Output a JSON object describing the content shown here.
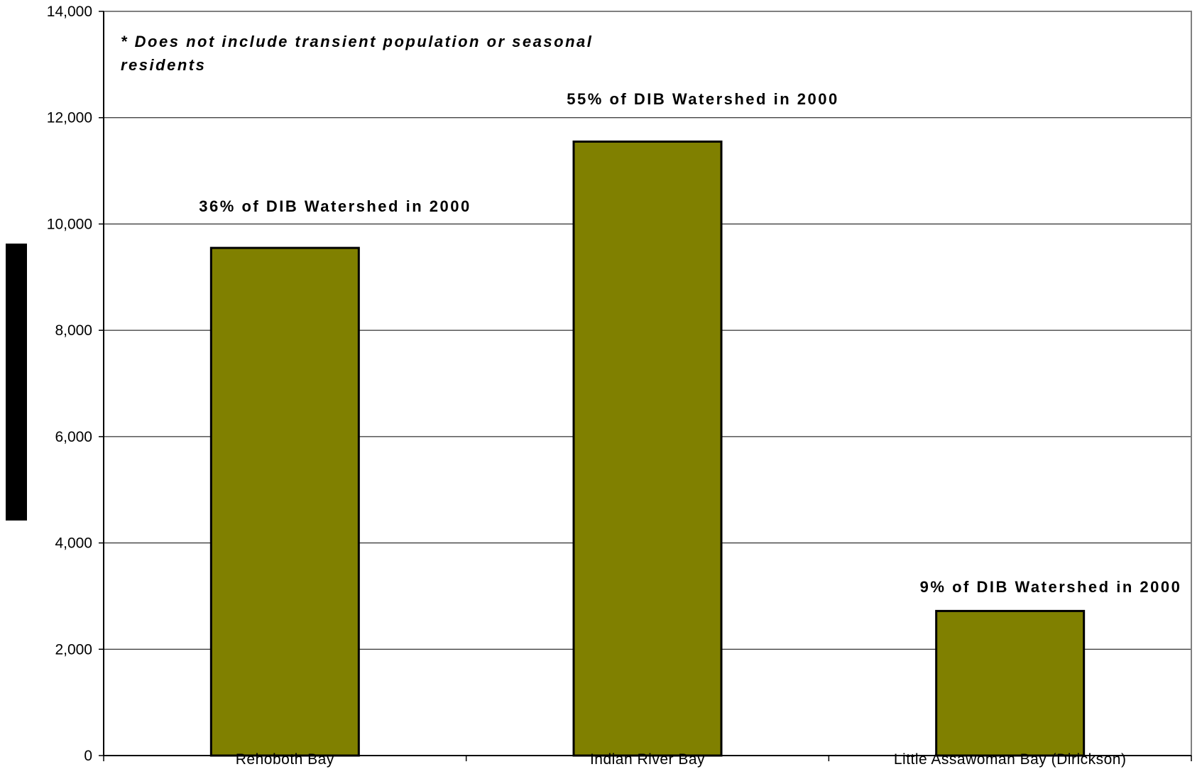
{
  "chart_data": {
    "type": "bar",
    "categories": [
      "Rehoboth Bay",
      "Indian River Bay",
      "Little Assawoman Bay (Dirickson)"
    ],
    "values": [
      9550,
      11550,
      2720
    ],
    "ylim": [
      0,
      14000
    ],
    "yticks": [
      0,
      2000,
      4000,
      6000,
      8000,
      10000,
      12000,
      14000
    ],
    "ytick_labels": [
      "0",
      "2,000",
      "4,000",
      "6,000",
      "8,000",
      "10,000",
      "12,000",
      "14,000"
    ],
    "grid": true,
    "bar_color": "#808000",
    "annotations": [
      "36% of DIB Watershed in 2000",
      "55% of DIB Watershed in 2000",
      "9% of DIB Watershed in 2000"
    ],
    "note_lines": [
      "* Does not include transient population or  seasonal",
      "residents"
    ]
  }
}
